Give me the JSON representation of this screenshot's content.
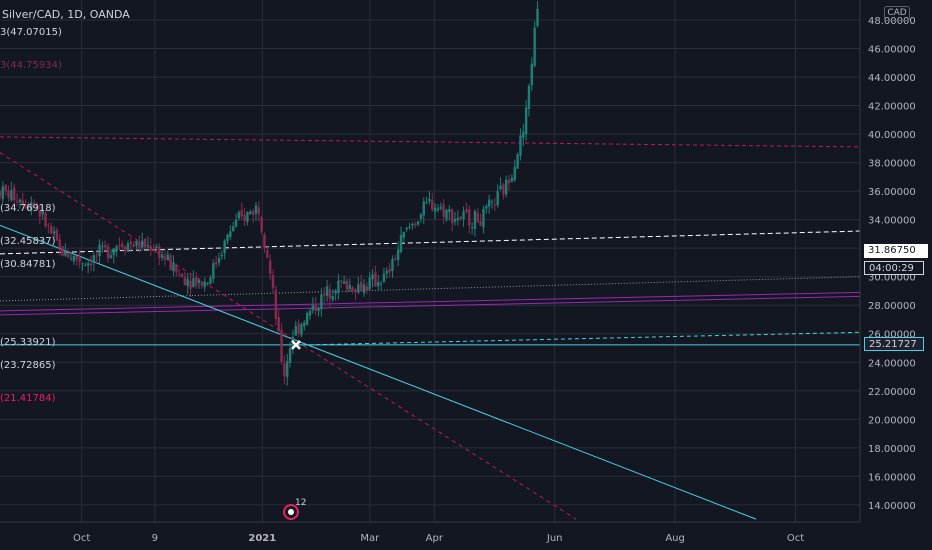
{
  "header": {
    "title": "Silver/CAD, 1D, OANDA",
    "currency": "CAD"
  },
  "price_tags": {
    "current": "31.86750",
    "timer": "04:00:29",
    "crosshair": "25.21727"
  },
  "level_labels": [
    {
      "text": "3(47.07015)",
      "price": 47.07015,
      "color": "#d1d4dc"
    },
    {
      "text": "3(44.75934)",
      "price": 44.75934,
      "color": "#7a2d52"
    },
    {
      "text": "(34.76918)",
      "price": 34.76918,
      "color": "#d1d4dc"
    },
    {
      "text": "(32.45837)",
      "price": 32.45837,
      "color": "#d1d4dc"
    },
    {
      "text": "(30.84781)",
      "price": 30.84781,
      "color": "#d1d4dc"
    },
    {
      "text": "(25.33921)",
      "price": 25.33921,
      "color": "#d1d4dc"
    },
    {
      "text": "(23.72865)",
      "price": 23.72865,
      "color": "#d1d4dc"
    },
    {
      "text": "(21.41784)",
      "price": 21.41784,
      "color": "#e91e63"
    }
  ],
  "event_badge": {
    "count": "12",
    "icon": "earnings-event-icon"
  },
  "colors": {
    "background": "#131722",
    "grid": "#2a2e39",
    "up_candle": "#26a69a",
    "down_candle": "#ef5350",
    "magenta_lines": "#9c27b0",
    "teal_lines": "#4dd0e1",
    "red_dashed": "#c2185b"
  },
  "chart_data": {
    "type": "candlestick",
    "title": "Silver/CAD, 1D, OANDA",
    "y_axis": {
      "ticks": [
        "14.00000",
        "16.00000",
        "18.00000",
        "20.00000",
        "22.00000",
        "24.00000",
        "26.00000",
        "28.00000",
        "30.00000",
        "32.00000",
        "34.00000",
        "36.00000",
        "38.00000",
        "40.00000",
        "42.00000",
        "44.00000",
        "46.00000",
        "48.00000"
      ],
      "range": [
        12.8,
        49.4
      ],
      "unit": "CAD"
    },
    "x_axis": {
      "ticks": [
        "Oct",
        "9",
        "2021",
        "Mar",
        "Apr",
        "Jun",
        "Aug",
        "Oct"
      ]
    },
    "grid": true,
    "legend": "none",
    "series_path": [
      {
        "t": 0.0,
        "close": 36.0
      },
      {
        "t": 0.04,
        "close": 35.2
      },
      {
        "t": 0.07,
        "close": 31.8
      },
      {
        "t": 0.1,
        "close": 31.0
      },
      {
        "t": 0.14,
        "close": 32.4
      },
      {
        "t": 0.18,
        "close": 32.1
      },
      {
        "t": 0.21,
        "close": 30.0
      },
      {
        "t": 0.24,
        "close": 29.6
      },
      {
        "t": 0.27,
        "close": 33.5
      },
      {
        "t": 0.3,
        "close": 35.0
      },
      {
        "t": 0.31,
        "close": 32.0
      },
      {
        "t": 0.33,
        "close": 23.0
      },
      {
        "t": 0.34,
        "close": 26.0
      },
      {
        "t": 0.36,
        "close": 27.5
      },
      {
        "t": 0.39,
        "close": 29.5
      },
      {
        "t": 0.42,
        "close": 29.3
      },
      {
        "t": 0.45,
        "close": 30.0
      },
      {
        "t": 0.47,
        "close": 33.0
      },
      {
        "t": 0.5,
        "close": 35.2
      },
      {
        "t": 0.53,
        "close": 34.2
      },
      {
        "t": 0.56,
        "close": 34.0
      },
      {
        "t": 0.59,
        "close": 36.5
      },
      {
        "t": 0.61,
        "close": 40.5
      },
      {
        "t": 0.625,
        "close": 49.0
      }
    ],
    "drawn_lines": [
      {
        "kind": "dashed-red-horizontal",
        "price_start": 39.8,
        "price_end": 39.1
      },
      {
        "kind": "dashed-white",
        "price_start": 31.6,
        "price_end": 33.2
      },
      {
        "kind": "grey-dotted",
        "price_start": 28.3,
        "price_end": 30.0
      },
      {
        "kind": "magenta-channel",
        "price_start": 27.6,
        "price_end": 28.9
      },
      {
        "kind": "teal-dashed",
        "price_start": 25.2,
        "price_end": 26.1
      },
      {
        "kind": "teal-horizontal",
        "price_start": 25.22,
        "price_end": 25.22
      },
      {
        "kind": "teal-diagonal",
        "price_start": 33.6,
        "price_end": 13.0
      },
      {
        "kind": "red-dashed-diagonal",
        "price_start": 38.7,
        "price_end": 13.0
      }
    ]
  }
}
